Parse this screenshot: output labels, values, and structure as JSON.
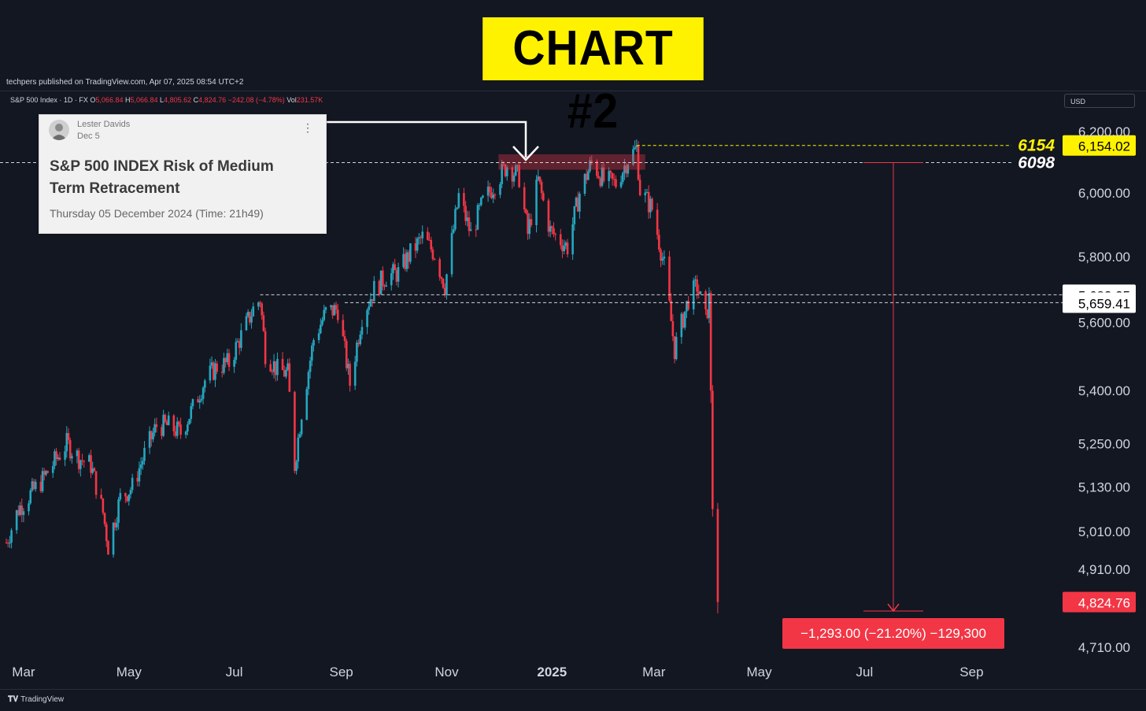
{
  "banner": {
    "title": "CHART #2"
  },
  "publish": {
    "text": "techpers published on TradingView.com, Apr 07, 2025 08:54 UTC+2"
  },
  "symbol": {
    "name": "S&P 500 Index · 1D · FX",
    "o_label": "O",
    "o": "5,066.84",
    "h_label": "H",
    "h": "5,066.84",
    "l_label": "L",
    "l": "4,805.62",
    "c_label": "C",
    "c": "4,824.76",
    "change": "−242.08 (−4.78%)",
    "vol_label": "Vol",
    "vol": "231.57K"
  },
  "currency": {
    "label": "USD"
  },
  "card": {
    "author": "Lester Davids",
    "date": "Dec 5",
    "headline_1": "S&P 500 INDEX Risk of Medium",
    "headline_2": "Term Retracement",
    "sub": "Thursday 05 December 2024 (Time: 21h49)",
    "menu_icon": "vertical-dots-icon"
  },
  "footer": {
    "brand": "TradingView"
  },
  "colors": {
    "up": "#26a6bf",
    "down": "#f23645",
    "bg": "#131722",
    "banner": "#fff200"
  },
  "chart_data": {
    "type": "candlestick",
    "title": "S&P 500 Index · 1D · FX",
    "y_scale": "log",
    "ylim": [
      4650,
      6260
    ],
    "y_ticks": [
      "6,200.00",
      "6,000.00",
      "5,800.00",
      "5,600.00",
      "5,400.00",
      "5,250.00",
      "5,130.00",
      "5,010.00",
      "4,910.00",
      "4,710.00"
    ],
    "y_tick_values": [
      6200,
      6000,
      5800,
      5600,
      5400,
      5250,
      5130,
      5010,
      4910,
      4710
    ],
    "x_ticks": [
      "Mar",
      "May",
      "Jul",
      "Sep",
      "Nov",
      "2025",
      "Mar",
      "May",
      "Jul",
      "Sep"
    ],
    "x_tick_dates": [
      "2024-03-01",
      "2024-05-01",
      "2024-07-01",
      "2024-09-01",
      "2024-11-01",
      "2025-01-01",
      "2025-03-01",
      "2025-05-01",
      "2025-07-01",
      "2025-09-01"
    ],
    "xlim": [
      "2024-02-20",
      "2025-10-10"
    ],
    "closes": [
      [
        "2024-02-20",
        4980
      ],
      [
        "2024-02-27",
        5070
      ],
      [
        "2024-03-05",
        5110
      ],
      [
        "2024-03-12",
        5150
      ],
      [
        "2024-03-19",
        5200
      ],
      [
        "2024-03-26",
        5250
      ],
      [
        "2024-04-02",
        5210
      ],
      [
        "2024-04-09",
        5190
      ],
      [
        "2024-04-16",
        5060
      ],
      [
        "2024-04-19",
        4970
      ],
      [
        "2024-04-26",
        5100
      ],
      [
        "2024-05-03",
        5130
      ],
      [
        "2024-05-10",
        5220
      ],
      [
        "2024-05-17",
        5300
      ],
      [
        "2024-05-24",
        5300
      ],
      [
        "2024-05-31",
        5280
      ],
      [
        "2024-06-07",
        5350
      ],
      [
        "2024-06-14",
        5430
      ],
      [
        "2024-06-21",
        5470
      ],
      [
        "2024-06-28",
        5480
      ],
      [
        "2024-07-05",
        5560
      ],
      [
        "2024-07-12",
        5640
      ],
      [
        "2024-07-16",
        5670
      ],
      [
        "2024-07-19",
        5510
      ],
      [
        "2024-07-26",
        5460
      ],
      [
        "2024-08-01",
        5450
      ],
      [
        "2024-08-05",
        5190
      ],
      [
        "2024-08-09",
        5340
      ],
      [
        "2024-08-16",
        5550
      ],
      [
        "2024-08-23",
        5630
      ],
      [
        "2024-08-30",
        5640
      ],
      [
        "2024-09-06",
        5420
      ],
      [
        "2024-09-13",
        5620
      ],
      [
        "2024-09-20",
        5700
      ],
      [
        "2024-09-27",
        5740
      ],
      [
        "2024-10-04",
        5750
      ],
      [
        "2024-10-11",
        5810
      ],
      [
        "2024-10-18",
        5860
      ],
      [
        "2024-10-25",
        5810
      ],
      [
        "2024-10-31",
        5710
      ],
      [
        "2024-11-08",
        5990
      ],
      [
        "2024-11-15",
        5870
      ],
      [
        "2024-11-22",
        5970
      ],
      [
        "2024-11-29",
        6030
      ],
      [
        "2024-12-06",
        6090
      ],
      [
        "2024-12-13",
        6050
      ],
      [
        "2024-12-18",
        5870
      ],
      [
        "2024-12-24",
        6040
      ],
      [
        "2024-12-31",
        5880
      ],
      [
        "2025-01-10",
        5830
      ],
      [
        "2025-01-17",
        6000
      ],
      [
        "2025-01-24",
        6100
      ],
      [
        "2025-01-31",
        6040
      ],
      [
        "2025-02-07",
        6030
      ],
      [
        "2025-02-14",
        6110
      ],
      [
        "2025-02-19",
        6144
      ],
      [
        "2025-02-21",
        6010
      ],
      [
        "2025-02-28",
        5950
      ],
      [
        "2025-03-07",
        5770
      ],
      [
        "2025-03-13",
        5520
      ],
      [
        "2025-03-21",
        5670
      ],
      [
        "2025-03-26",
        5710
      ],
      [
        "2025-03-31",
        5610
      ],
      [
        "2025-04-02",
        5670
      ],
      [
        "2025-04-03",
        5400
      ],
      [
        "2025-04-04",
        5070
      ],
      [
        "2025-04-07",
        4824.76
      ]
    ],
    "annotations": {
      "high_label": "6154",
      "high_value": 6154.02,
      "high_tag": "6,154.02",
      "level_label": "6098",
      "level_value": 6098,
      "support_1": 5683.35,
      "support_1_tag": "5,683.35",
      "support_2": 5659.41,
      "support_2_tag": "5,659.41",
      "last_value": 4824.76,
      "last_tag": "4,824.76",
      "measure_text": "−1,293.00 (−21.20%) −129,300",
      "resistance_zone": [
        6075,
        6125
      ]
    }
  }
}
